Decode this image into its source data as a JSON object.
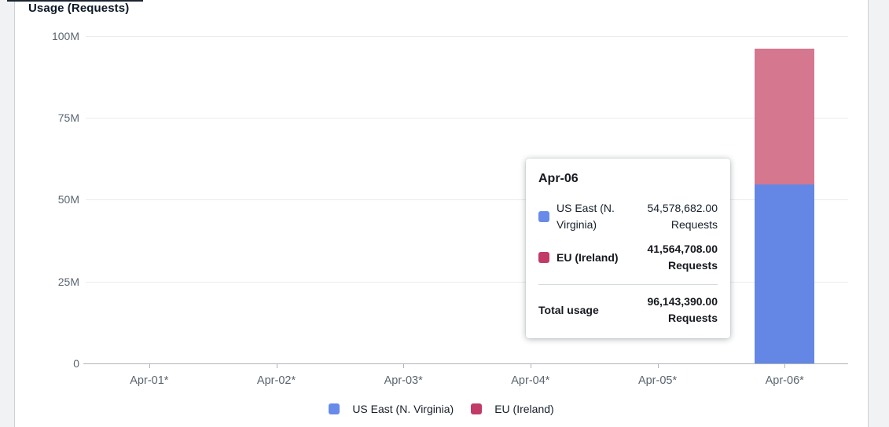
{
  "page": {
    "title": "Usage (Requests)"
  },
  "chart_data": {
    "type": "bar",
    "stacked": true,
    "title": "Usage (Requests)",
    "unit": "Requests",
    "categories": [
      "Apr-01*",
      "Apr-02*",
      "Apr-03*",
      "Apr-04*",
      "Apr-05*",
      "Apr-06*"
    ],
    "series": [
      {
        "name": "US East (N. Virginia)",
        "color": "#6487e5",
        "values": [
          0,
          0,
          0,
          0,
          0,
          54578682
        ]
      },
      {
        "name": "EU (Ireland)",
        "color": "#d4778f",
        "values": [
          0,
          0,
          0,
          0,
          0,
          41564708
        ]
      }
    ],
    "total_apr06": 96143390,
    "xlabel": "",
    "ylabel": "",
    "ylim": [
      0,
      100000000
    ],
    "ytick_labels": [
      "100M",
      "75M",
      "50M",
      "25M",
      "0"
    ],
    "grid": true,
    "legend_position": "bottom"
  },
  "tooltip": {
    "title": "Apr-06",
    "rows": [
      {
        "label": "US East (N. Virginia)",
        "swatch": "#688ae8",
        "value": "54,578,682.00",
        "unit": "Requests",
        "bold": false
      },
      {
        "label": "EU (Ireland)",
        "swatch": "#c23a68",
        "value": "41,564,708.00",
        "unit": "Requests",
        "bold": true
      }
    ],
    "total": {
      "label": "Total usage",
      "value": "96,143,390.00",
      "unit": "Requests"
    }
  },
  "legend": {
    "items": [
      {
        "label": "US East (N. Virginia)",
        "color": "#688ae8"
      },
      {
        "label": "EU (Ireland)",
        "color": "#c23a68"
      }
    ]
  }
}
